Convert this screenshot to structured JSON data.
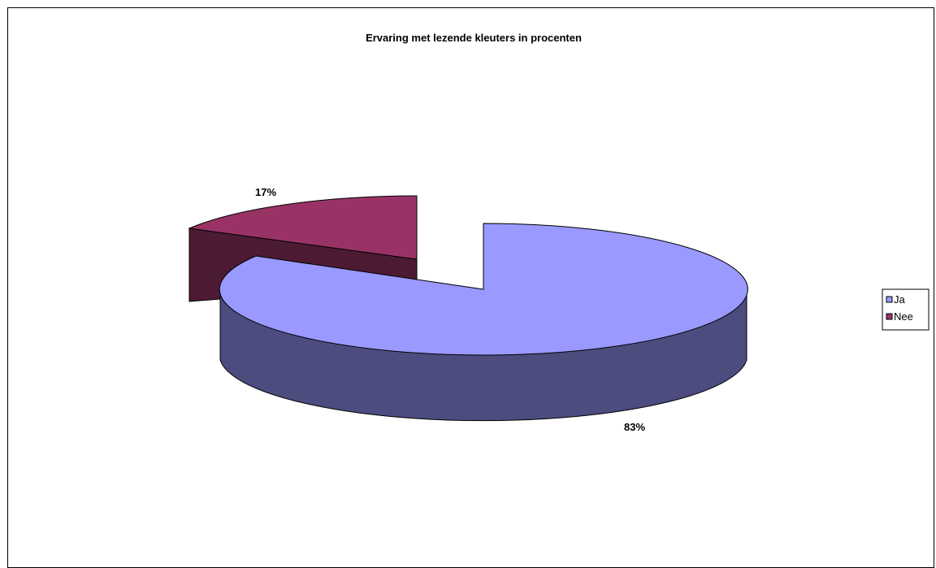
{
  "chart_data": {
    "type": "pie",
    "three_d": true,
    "exploded": true,
    "title": "Ervaring met lezende kleuters in procenten",
    "categories": [
      "Ja",
      "Nee"
    ],
    "values": [
      83,
      17
    ],
    "labels": [
      "83%",
      "17%"
    ],
    "colors": {
      "Ja": {
        "top": "#9999ff",
        "side": "#4c4c7f"
      },
      "Nee": {
        "top": "#993366",
        "side": "#4d1a33"
      }
    },
    "legend": {
      "position": "right",
      "entries": [
        "Ja",
        "Nee"
      ]
    }
  }
}
